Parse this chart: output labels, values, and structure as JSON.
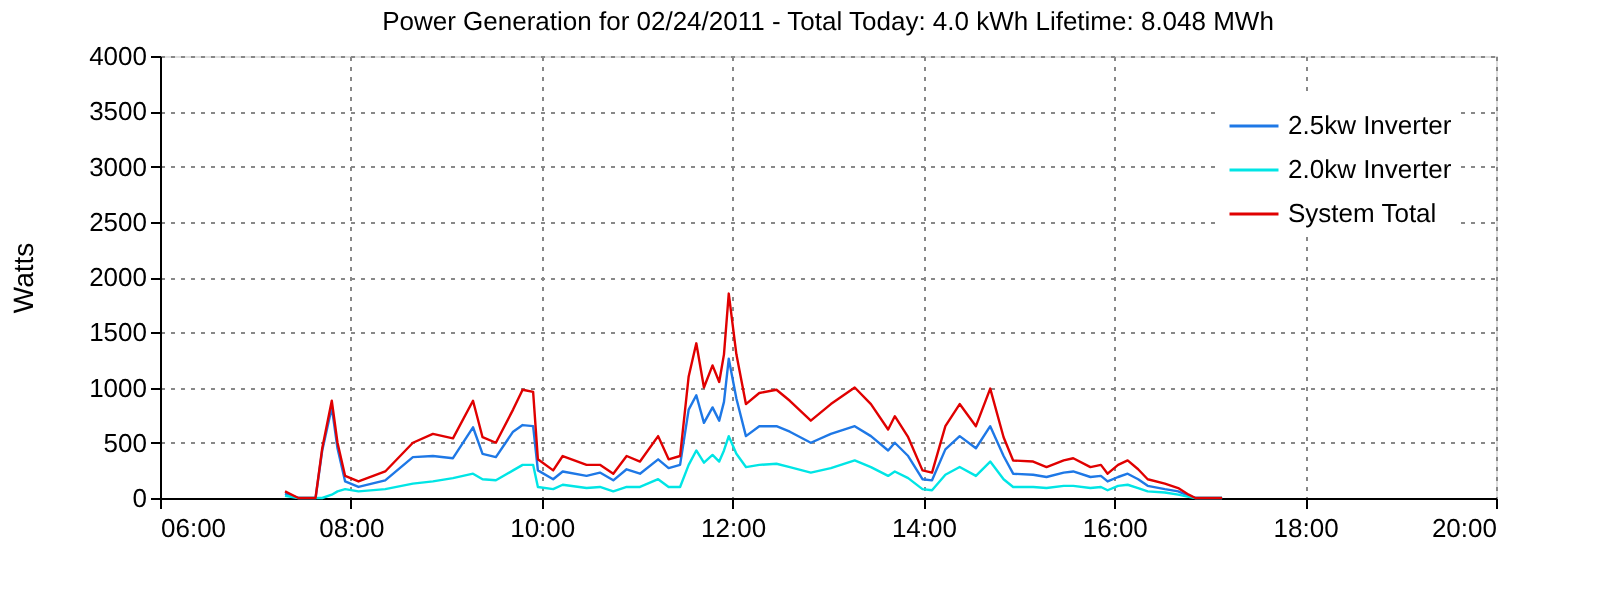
{
  "chart_data": {
    "type": "line",
    "title": "Power Generation for 02/24/2011 - Total Today: 4.0 kWh   Lifetime: 8.048 MWh",
    "ylabel": "Watts",
    "x": [
      7.31,
      7.45,
      7.63,
      7.7,
      7.8,
      7.86,
      7.94,
      8.08,
      8.36,
      8.65,
      8.86,
      9.07,
      9.28,
      9.38,
      9.52,
      9.7,
      9.8,
      9.91,
      9.96,
      10.12,
      10.22,
      10.47,
      10.61,
      10.75,
      10.89,
      11.03,
      11.22,
      11.33,
      11.45,
      11.54,
      11.62,
      11.7,
      11.79,
      11.86,
      11.91,
      11.96,
      12.04,
      12.14,
      12.28,
      12.46,
      12.6,
      12.82,
      13.03,
      13.28,
      13.45,
      13.63,
      13.7,
      13.84,
      13.99,
      14.09,
      14.23,
      14.38,
      14.55,
      14.7,
      14.84,
      14.94,
      15.15,
      15.29,
      15.47,
      15.57,
      15.75,
      15.86,
      15.93,
      16.04,
      16.14,
      16.25,
      16.35,
      16.53,
      16.67,
      16.78,
      16.85,
      17.13
    ],
    "series": [
      {
        "name": "2.5kw Inverter",
        "color": "#1e78e6",
        "values": [
          40,
          0,
          0,
          430,
          820,
          450,
          150,
          100,
          160,
          370,
          380,
          360,
          640,
          400,
          370,
          600,
          660,
          650,
          250,
          170,
          240,
          200,
          230,
          160,
          260,
          220,
          350,
          270,
          300,
          800,
          930,
          680,
          820,
          700,
          870,
          1260,
          900,
          560,
          650,
          650,
          600,
          500,
          580,
          650,
          560,
          430,
          500,
          380,
          170,
          160,
          440,
          560,
          450,
          650,
          380,
          220,
          210,
          190,
          230,
          240,
          190,
          200,
          150,
          190,
          220,
          170,
          110,
          80,
          60,
          20,
          0,
          0
        ]
      },
      {
        "name": "2.0kw Inverter",
        "color": "#00e5e5",
        "values": [
          20,
          0,
          0,
          0,
          30,
          60,
          80,
          60,
          80,
          130,
          150,
          180,
          220,
          170,
          160,
          250,
          300,
          300,
          100,
          80,
          120,
          90,
          100,
          60,
          100,
          100,
          170,
          100,
          100,
          300,
          430,
          320,
          390,
          330,
          430,
          560,
          400,
          280,
          300,
          310,
          280,
          230,
          270,
          340,
          280,
          200,
          240,
          180,
          80,
          70,
          210,
          280,
          200,
          330,
          170,
          100,
          100,
          90,
          110,
          110,
          90,
          100,
          70,
          110,
          120,
          90,
          60,
          50,
          30,
          10,
          0,
          0
        ]
      },
      {
        "name": "System Total",
        "color": "#e00000",
        "values": [
          60,
          0,
          0,
          450,
          880,
          500,
          200,
          150,
          240,
          500,
          580,
          540,
          880,
          550,
          500,
          800,
          980,
          960,
          350,
          250,
          380,
          300,
          300,
          220,
          380,
          330,
          560,
          350,
          380,
          1100,
          1400,
          1000,
          1200,
          1050,
          1300,
          1850,
          1300,
          850,
          950,
          980,
          880,
          700,
          850,
          1000,
          850,
          620,
          740,
          550,
          250,
          230,
          650,
          850,
          650,
          990,
          550,
          340,
          330,
          280,
          340,
          360,
          280,
          300,
          220,
          300,
          340,
          260,
          170,
          130,
          90,
          30,
          0,
          0
        ]
      }
    ],
    "xlim": [
      6,
      20
    ],
    "xticks": [
      {
        "value": 6,
        "label": "06:00"
      },
      {
        "value": 8,
        "label": "08:00"
      },
      {
        "value": 10,
        "label": "10:00"
      },
      {
        "value": 12,
        "label": "12:00"
      },
      {
        "value": 14,
        "label": "14:00"
      },
      {
        "value": 16,
        "label": "16:00"
      },
      {
        "value": 18,
        "label": "18:00"
      },
      {
        "value": 20,
        "label": "20:00"
      }
    ],
    "ylim": [
      0,
      4000
    ],
    "yticks": [
      0,
      500,
      1000,
      1500,
      2000,
      2500,
      3000,
      3500,
      4000
    ],
    "grid": true,
    "legend": "top right",
    "marker": "none",
    "line_style": "solid"
  }
}
